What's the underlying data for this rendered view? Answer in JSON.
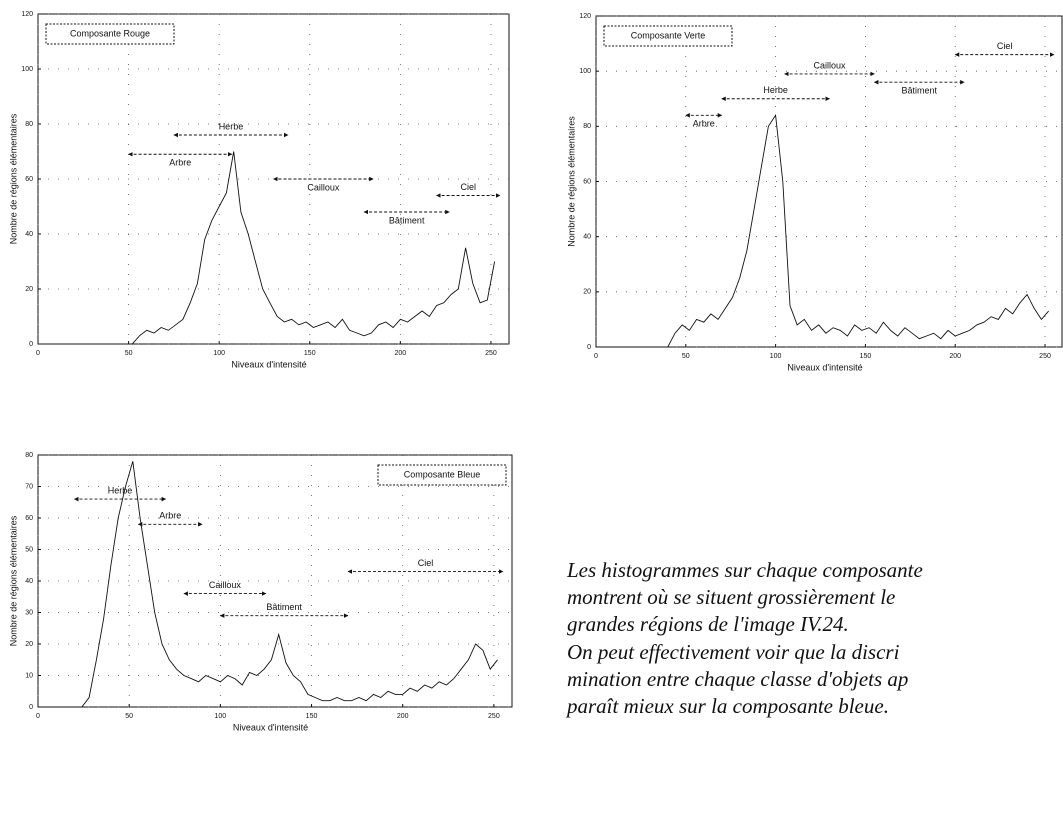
{
  "chart_data": [
    {
      "type": "line",
      "xlabel": "Niveaux d'intensité",
      "ylabel": "Nombre de régions élémentaires",
      "xlim": [
        0,
        255
      ],
      "ylim": [
        0,
        120
      ],
      "xticks": [
        0,
        50,
        100,
        150,
        200,
        250
      ],
      "yticks": [
        0,
        20,
        40,
        60,
        80,
        100,
        120
      ],
      "grid": true,
      "legend": "upper left",
      "x": [
        0,
        4,
        8,
        12,
        16,
        20,
        24,
        28,
        32,
        36,
        40,
        44,
        48,
        52,
        56,
        60,
        64,
        68,
        72,
        76,
        80,
        84,
        88,
        92,
        96,
        100,
        104,
        108,
        112,
        116,
        120,
        124,
        128,
        132,
        136,
        140,
        144,
        148,
        152,
        156,
        160,
        164,
        168,
        172,
        176,
        180,
        184,
        188,
        192,
        196,
        200,
        204,
        208,
        212,
        216,
        220,
        224,
        228,
        232,
        236,
        240,
        244,
        248,
        252
      ],
      "series": [
        {
          "name": "Composante Rouge",
          "color": "#111111",
          "values": [
            0,
            0,
            0,
            0,
            0,
            0,
            0,
            0,
            0,
            0,
            0,
            0,
            0,
            0,
            3,
            5,
            4,
            6,
            5,
            7,
            9,
            15,
            22,
            38,
            45,
            50,
            55,
            70,
            48,
            40,
            30,
            20,
            15,
            10,
            8,
            9,
            7,
            8,
            6,
            7,
            8,
            6,
            9,
            5,
            4,
            3,
            4,
            7,
            8,
            6,
            9,
            8,
            10,
            12,
            10,
            14,
            15,
            18,
            20,
            35,
            22,
            15,
            16,
            30
          ]
        }
      ],
      "annotations": [
        {
          "text": "Herbe",
          "x": [
            75,
            138
          ],
          "y": 76,
          "position": "above"
        },
        {
          "text": "Arbre",
          "x": [
            50,
            107
          ],
          "y": 69,
          "position": "below"
        },
        {
          "text": "Cailloux",
          "x": [
            130,
            185
          ],
          "y": 60,
          "position": "below"
        },
        {
          "text": "Bâtiment",
          "x": [
            180,
            227
          ],
          "y": 48,
          "position": "below"
        },
        {
          "text": "Ciel",
          "x": [
            220,
            255
          ],
          "y": 54,
          "position": "above"
        }
      ]
    },
    {
      "type": "line",
      "xlabel": "Niveaux d'intensité",
      "ylabel": "Nombre de régions élémentaires",
      "xlim": [
        0,
        255
      ],
      "ylim": [
        0,
        120
      ],
      "xticks": [
        0,
        50,
        100,
        150,
        200,
        250
      ],
      "yticks": [
        0,
        20,
        40,
        60,
        80,
        100,
        120
      ],
      "grid": true,
      "legend": "upper left",
      "x": [
        0,
        4,
        8,
        12,
        16,
        20,
        24,
        28,
        32,
        36,
        40,
        44,
        48,
        52,
        56,
        60,
        64,
        68,
        72,
        76,
        80,
        84,
        88,
        92,
        96,
        100,
        104,
        108,
        112,
        116,
        120,
        124,
        128,
        132,
        136,
        140,
        144,
        148,
        152,
        156,
        160,
        164,
        168,
        172,
        176,
        180,
        184,
        188,
        192,
        196,
        200,
        204,
        208,
        212,
        216,
        220,
        224,
        228,
        232,
        236,
        240,
        244,
        248,
        252
      ],
      "series": [
        {
          "name": "Composante Verte",
          "color": "#111111",
          "values": [
            0,
            0,
            0,
            0,
            0,
            0,
            0,
            0,
            0,
            0,
            0,
            5,
            8,
            6,
            10,
            9,
            12,
            10,
            14,
            18,
            25,
            35,
            50,
            65,
            80,
            84,
            60,
            15,
            8,
            10,
            6,
            8,
            5,
            7,
            6,
            4,
            8,
            6,
            7,
            5,
            9,
            6,
            4,
            7,
            5,
            3,
            4,
            5,
            3,
            6,
            4,
            5,
            6,
            8,
            9,
            11,
            10,
            14,
            12,
            16,
            19,
            14,
            10,
            13
          ]
        }
      ],
      "annotations": [
        {
          "text": "Arbre",
          "x": [
            50,
            70
          ],
          "y": 84,
          "position": "below"
        },
        {
          "text": "Herbe",
          "x": [
            70,
            130
          ],
          "y": 90,
          "position": "above"
        },
        {
          "text": "Cailloux",
          "x": [
            105,
            155
          ],
          "y": 99,
          "position": "above"
        },
        {
          "text": "Bâtiment",
          "x": [
            155,
            205
          ],
          "y": 96,
          "position": "below"
        },
        {
          "text": "Ciel",
          "x": [
            200,
            255
          ],
          "y": 106,
          "position": "above"
        }
      ]
    },
    {
      "type": "line",
      "xlabel": "Niveaux d'intensité",
      "ylabel": "Nombre de régions élémentaires",
      "xlim": [
        0,
        255
      ],
      "ylim": [
        0,
        80
      ],
      "xticks": [
        0,
        50,
        100,
        150,
        200,
        250
      ],
      "yticks": [
        0,
        10,
        20,
        30,
        40,
        50,
        60,
        70,
        80
      ],
      "grid": true,
      "legend": "upper right",
      "x": [
        0,
        4,
        8,
        12,
        16,
        20,
        24,
        28,
        32,
        36,
        40,
        44,
        48,
        52,
        56,
        60,
        64,
        68,
        72,
        76,
        80,
        84,
        88,
        92,
        96,
        100,
        104,
        108,
        112,
        116,
        120,
        124,
        128,
        132,
        136,
        140,
        144,
        148,
        152,
        156,
        160,
        164,
        168,
        172,
        176,
        180,
        184,
        188,
        192,
        196,
        200,
        204,
        208,
        212,
        216,
        220,
        224,
        228,
        232,
        236,
        240,
        244,
        248,
        252
      ],
      "series": [
        {
          "name": "Composante Bleue",
          "color": "#111111",
          "values": [
            0,
            0,
            0,
            0,
            0,
            0,
            0,
            3,
            15,
            28,
            45,
            60,
            70,
            78,
            60,
            45,
            30,
            20,
            15,
            12,
            10,
            9,
            8,
            10,
            9,
            8,
            10,
            9,
            7,
            11,
            10,
            12,
            15,
            23,
            14,
            10,
            8,
            4,
            3,
            2,
            2,
            3,
            2,
            2,
            3,
            2,
            4,
            3,
            5,
            4,
            4,
            6,
            5,
            7,
            6,
            8,
            7,
            9,
            12,
            15,
            20,
            18,
            12,
            15
          ]
        }
      ],
      "annotations": [
        {
          "text": "Herbe",
          "x": [
            20,
            70
          ],
          "y": 66,
          "position": "above"
        },
        {
          "text": "Arbre",
          "x": [
            55,
            90
          ],
          "y": 58,
          "position": "above"
        },
        {
          "text": "Ciel",
          "x": [
            170,
            255
          ],
          "y": 43,
          "position": "above"
        },
        {
          "text": "Cailloux",
          "x": [
            80,
            125
          ],
          "y": 36,
          "position": "above"
        },
        {
          "text": "Bâtiment",
          "x": [
            100,
            170
          ],
          "y": 29,
          "position": "above"
        }
      ]
    }
  ],
  "paragraph": {
    "lines": [
      "Les histogrammes sur chaque composante",
      "montrent où se situent grossièrement le",
      "grandes régions de l'image IV.24.",
      "On peut effectivement voir que la discri",
      "mination entre chaque classe d'objets ap",
      "paraît mieux sur la composante bleue."
    ]
  }
}
